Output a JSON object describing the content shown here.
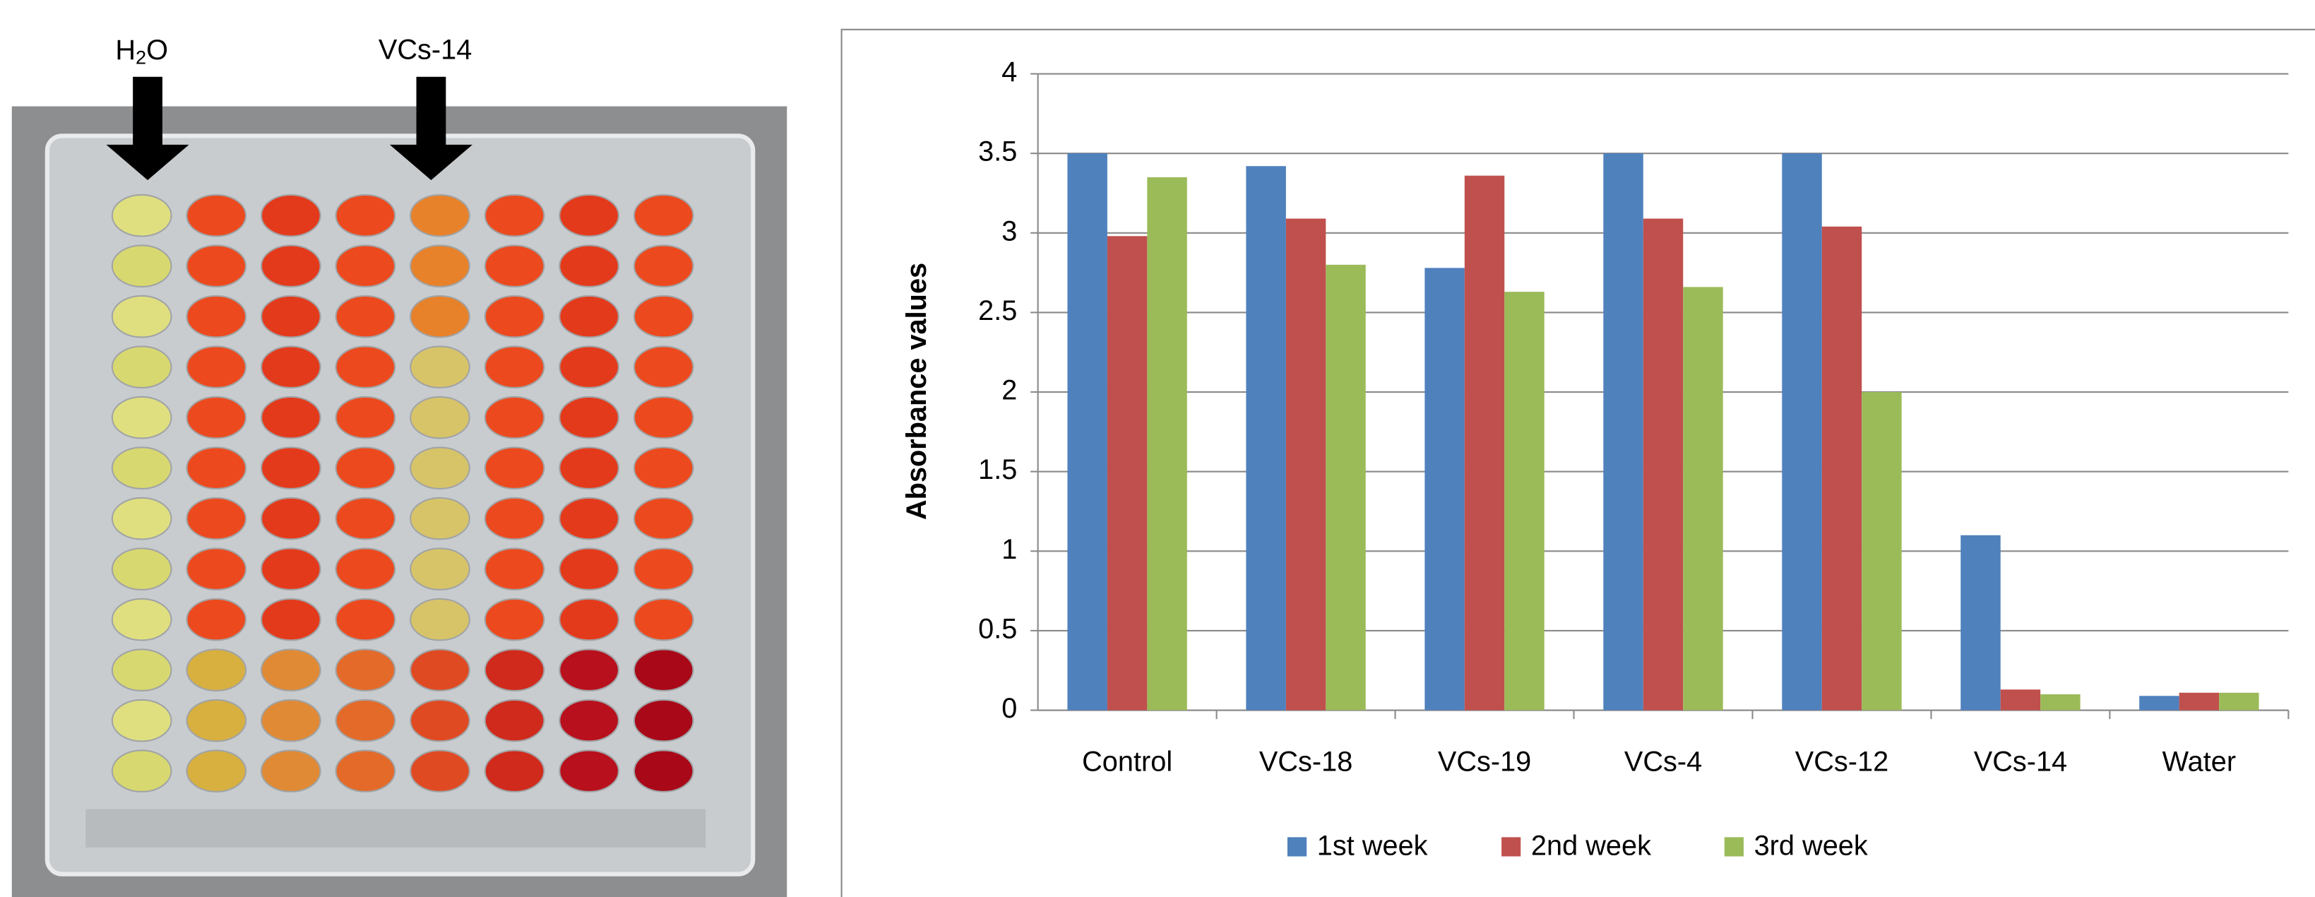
{
  "photo_labels": {
    "water": [
      "H",
      "2",
      "O"
    ],
    "isolate": "VCs-14"
  },
  "chart_data": {
    "type": "bar",
    "y_label": "Absorbance  values",
    "categories": [
      "Control",
      "VCs-18",
      "VCs-19",
      "VCs-4",
      "VCs-12",
      "VCs-14",
      "Water"
    ],
    "series": [
      {
        "name": "1st week",
        "color": "#4f81bd",
        "values": [
          3.5,
          3.42,
          2.78,
          3.5,
          3.5,
          1.1,
          0.09
        ]
      },
      {
        "name": "2nd week",
        "color": "#c0504d",
        "values": [
          2.98,
          3.09,
          3.36,
          3.09,
          3.04,
          0.13,
          0.11
        ]
      },
      {
        "name": "3rd week",
        "color": "#9bbb59",
        "values": [
          3.35,
          2.8,
          2.63,
          2.66,
          2.0,
          0.1,
          0.11
        ]
      }
    ],
    "ylim": [
      0,
      4
    ],
    "yticks": [
      0,
      0.5,
      1,
      1.5,
      2,
      2.5,
      3,
      3.5,
      4
    ],
    "grid": true,
    "legend": "bottom"
  }
}
